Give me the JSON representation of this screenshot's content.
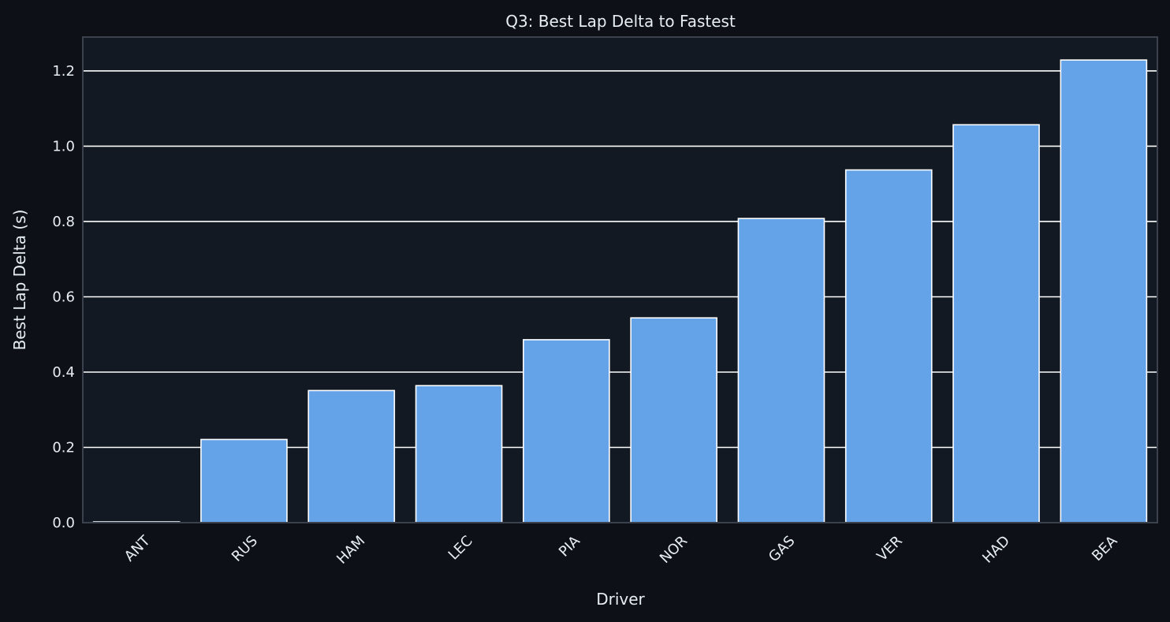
{
  "chart_data": {
    "type": "bar",
    "title": "Q3: Best Lap Delta to Fastest",
    "xlabel": "Driver",
    "ylabel": "Best Lap Delta (s)",
    "categories": [
      "ANT",
      "RUS",
      "HAM",
      "LEC",
      "PIA",
      "NOR",
      "GAS",
      "VER",
      "HAD",
      "BEA"
    ],
    "values": [
      0.0,
      0.221,
      0.351,
      0.364,
      0.486,
      0.544,
      0.808,
      0.937,
      1.057,
      1.229
    ],
    "ylim": [
      0,
      1.29
    ],
    "yticks": [
      "0.0",
      "0.2",
      "0.4",
      "0.6",
      "0.8",
      "1.0",
      "1.2"
    ],
    "grid": "horizontal",
    "x_tick_rotation": -45,
    "colors": {
      "background": "#0d1117",
      "plot_background": "#131922",
      "bar": "#65a3e9",
      "bar_edge": "#ffffff",
      "grid": "#ffffff",
      "spine": "#3b424d",
      "text": "#e6edf3"
    }
  }
}
